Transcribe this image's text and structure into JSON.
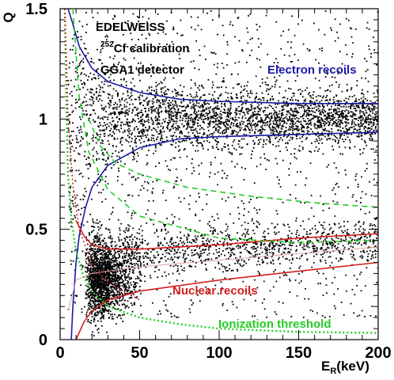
{
  "chart_data": {
    "type": "scatter",
    "xlabel": "E",
    "xlabel_sub": "R",
    "xlabel_unit": "(keV)",
    "ylabel": "Q",
    "xlim": [
      0,
      200
    ],
    "ylim": [
      0,
      1.5
    ],
    "x_ticks": [
      "0",
      "50",
      "100",
      "150",
      "200"
    ],
    "y_ticks": [
      "0",
      "0.5",
      "1",
      "1.5"
    ],
    "annotations": {
      "line1": "EDELWEISS",
      "line2_sup": "252",
      "line2": "Cf calibration",
      "line3": "GGA1 detector",
      "electron": "Electron recoils",
      "nuclear": "Nuclear recoils",
      "threshold": "Ionization threshold"
    },
    "colors": {
      "electron": "#1a1aa8",
      "nuclear": "#d42020",
      "threshold": "#22cc22",
      "points": "#000000"
    },
    "electron_band_upper": [
      [
        5,
        1.5
      ],
      [
        8,
        1.43
      ],
      [
        12,
        1.33
      ],
      [
        20,
        1.23
      ],
      [
        30,
        1.17
      ],
      [
        50,
        1.12
      ],
      [
        75,
        1.09
      ],
      [
        100,
        1.08
      ],
      [
        150,
        1.07
      ],
      [
        200,
        1.07
      ]
    ],
    "electron_band_lower": [
      [
        7,
        0.0
      ],
      [
        8,
        0.15
      ],
      [
        10,
        0.35
      ],
      [
        12,
        0.47
      ],
      [
        16,
        0.6
      ],
      [
        20,
        0.69
      ],
      [
        30,
        0.79
      ],
      [
        50,
        0.87
      ],
      [
        75,
        0.91
      ],
      [
        100,
        0.92
      ],
      [
        150,
        0.93
      ],
      [
        200,
        0.94
      ]
    ],
    "nuclear_band_upper": [
      [
        10,
        0.54
      ],
      [
        15,
        0.47
      ],
      [
        20,
        0.43
      ],
      [
        30,
        0.41
      ],
      [
        50,
        0.41
      ],
      [
        100,
        0.43
      ],
      [
        150,
        0.46
      ],
      [
        200,
        0.48
      ]
    ],
    "nuclear_band_lower": [
      [
        10,
        0.0
      ],
      [
        15,
        0.08
      ],
      [
        20,
        0.13
      ],
      [
        30,
        0.18
      ],
      [
        50,
        0.22
      ],
      [
        100,
        0.27
      ],
      [
        150,
        0.31
      ],
      [
        200,
        0.35
      ]
    ],
    "nuclear_band_mid": [
      [
        5,
        0.13
      ],
      [
        10,
        0.27
      ],
      [
        20,
        0.3
      ],
      [
        50,
        0.33
      ],
      [
        100,
        0.36
      ],
      [
        150,
        0.39
      ],
      [
        200,
        0.42
      ]
    ],
    "electron_gamma_lower_dashed": [
      [
        8,
        1.5
      ],
      [
        12,
        1.1
      ],
      [
        18,
        0.85
      ],
      [
        30,
        0.68
      ],
      [
        50,
        0.56
      ],
      [
        100,
        0.46
      ],
      [
        150,
        0.44
      ],
      [
        200,
        0.45
      ]
    ],
    "nuclear_dashed_upper": [
      [
        18,
        1.0
      ],
      [
        25,
        0.88
      ],
      [
        35,
        0.8
      ],
      [
        50,
        0.75
      ],
      [
        80,
        0.69
      ],
      [
        120,
        0.65
      ],
      [
        160,
        0.62
      ],
      [
        200,
        0.6
      ]
    ],
    "ionization_threshold": [
      [
        3,
        1.5
      ],
      [
        4,
        1.05
      ],
      [
        5,
        0.75
      ],
      [
        7,
        0.55
      ],
      [
        10,
        0.4
      ],
      [
        15,
        0.28
      ],
      [
        20,
        0.22
      ],
      [
        30,
        0.15
      ],
      [
        50,
        0.1
      ],
      [
        75,
        0.07
      ],
      [
        100,
        0.05
      ],
      [
        150,
        0.035
      ],
      [
        200,
        0.03
      ]
    ],
    "ionization_threshold_red": [
      [
        3,
        1.5
      ],
      [
        5,
        1.0
      ],
      [
        8,
        0.7
      ],
      [
        12,
        0.5
      ],
      [
        20,
        0.34
      ],
      [
        30,
        0.26
      ],
      [
        50,
        0.18
      ]
    ],
    "clusters": [
      {
        "name": "electron",
        "x_range": [
          5,
          200
        ],
        "y_center": 1.0,
        "y_spread": 0.06,
        "count": 2600
      },
      {
        "name": "nuclear",
        "x_range": [
          15,
          60
        ],
        "y_center": 0.28,
        "y_spread": 0.07,
        "count": 1800
      },
      {
        "name": "nuclear_tail",
        "x_range": [
          40,
          200
        ],
        "y_center": 0.4,
        "y_spread": 0.05,
        "count": 900
      },
      {
        "name": "diffuse",
        "x_range": [
          5,
          200
        ],
        "y_range": [
          0.1,
          1.5
        ],
        "count": 1200
      }
    ]
  }
}
